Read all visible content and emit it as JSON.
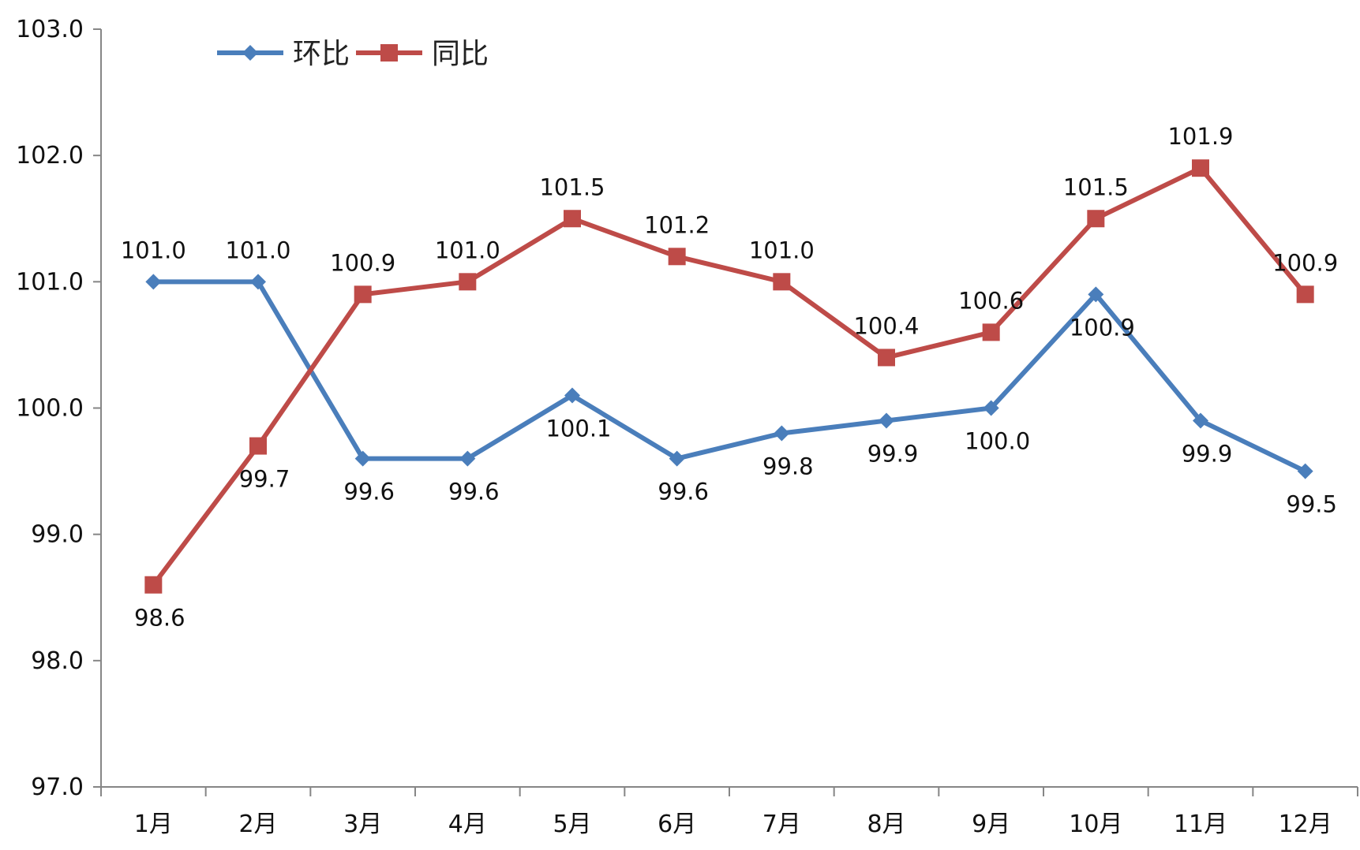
{
  "chart_data": {
    "type": "line",
    "categories": [
      "1月",
      "2月",
      "3月",
      "4月",
      "5月",
      "6月",
      "7月",
      "8月",
      "9月",
      "10月",
      "11月",
      "12月"
    ],
    "series": [
      {
        "name": "环比",
        "color": "#4a7ebb",
        "marker": "diamond",
        "values": [
          101.0,
          101.0,
          99.6,
          99.6,
          100.1,
          99.6,
          99.8,
          99.9,
          100.0,
          100.9,
          99.9,
          99.5
        ],
        "labels": [
          "101.0",
          "101.0",
          "99.6",
          "99.6",
          "100.1",
          "99.6",
          "99.8",
          "99.9",
          "100.0",
          "100.9",
          "99.9",
          "99.5"
        ]
      },
      {
        "name": "同比",
        "color": "#be4b48",
        "marker": "square",
        "values": [
          98.6,
          99.7,
          100.9,
          101.0,
          101.5,
          101.2,
          101.0,
          100.4,
          100.6,
          101.5,
          101.9,
          100.9
        ],
        "labels": [
          "98.6",
          "99.7",
          "100.9",
          "101.0",
          "101.5",
          "101.2",
          "101.0",
          "100.4",
          "100.6",
          "101.5",
          "101.9",
          "100.9"
        ]
      }
    ],
    "yticks": [
      "97.0",
      "98.0",
      "99.0",
      "100.0",
      "101.0",
      "102.0",
      "103.0"
    ],
    "ylim": [
      97.0,
      103.0
    ],
    "legend_position": "top-left",
    "grid": false
  }
}
